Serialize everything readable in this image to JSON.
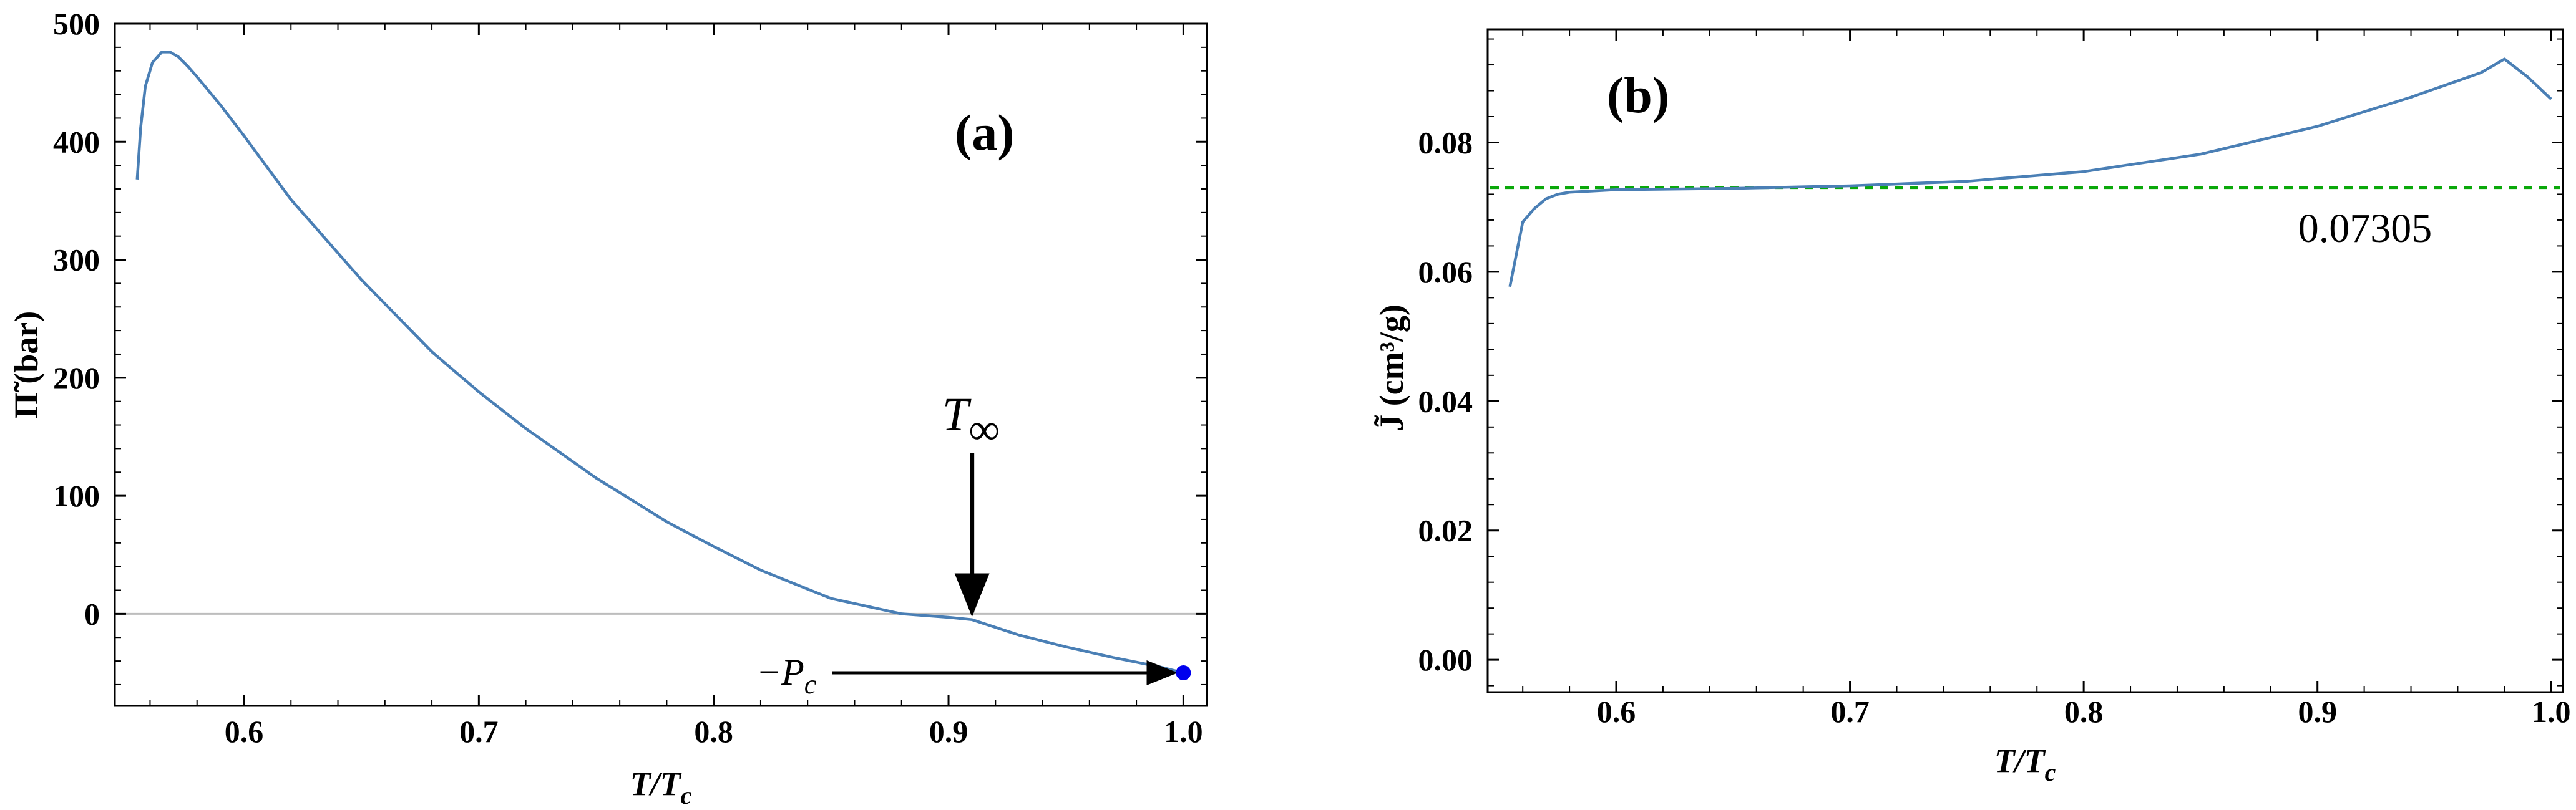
{
  "chart_data": [
    {
      "type": "line",
      "panel_label": "(a)",
      "xlabel": "T/Tc",
      "ylabel": "Π̃ (bar)",
      "xlim": [
        0.545,
        1.01
      ],
      "ylim": [
        -78,
        500
      ],
      "xticks": [
        0.6,
        0.7,
        0.8,
        0.9,
        1.0
      ],
      "xtick_labels": [
        "0.6",
        "0.7",
        "0.8",
        "0.9",
        "1.0"
      ],
      "yticks": [
        0,
        100,
        200,
        300,
        400,
        500
      ],
      "ytick_labels": [
        "0",
        "100",
        "200",
        "300",
        "400",
        "500"
      ],
      "zero_line": true,
      "series": [
        {
          "name": "Pi_tilde",
          "color": "#4a7fb5",
          "x": [
            0.5545,
            0.556,
            0.558,
            0.561,
            0.565,
            0.5685,
            0.572,
            0.576,
            0.58,
            0.59,
            0.6,
            0.62,
            0.65,
            0.68,
            0.7,
            0.72,
            0.75,
            0.78,
            0.8,
            0.82,
            0.85,
            0.88,
            0.9,
            0.91,
            0.93,
            0.95,
            0.97,
            0.99,
            1.0
          ],
          "y": [
            368,
            412,
            447,
            467,
            476,
            476,
            472,
            464,
            455,
            431,
            405,
            351,
            283,
            222,
            188,
            157,
            115,
            78,
            57,
            37,
            13,
            0,
            -3,
            -5,
            -18,
            -28,
            -37,
            -45,
            -50
          ]
        }
      ],
      "annotations": [
        {
          "text": "T∞",
          "x": 0.91,
          "y": 0,
          "type": "down-arrow"
        },
        {
          "text": "−Pc",
          "x": 1.0,
          "y": -50,
          "type": "right-arrow"
        }
      ],
      "marker": {
        "x": 1.0,
        "y": -50,
        "color": "#0000ee"
      }
    },
    {
      "type": "line",
      "panel_label": "(b)",
      "xlabel": "T/Tc",
      "ylabel": "J̃ (cm³/g)",
      "xlim": [
        0.545,
        1.005
      ],
      "ylim": [
        -0.005,
        0.0975
      ],
      "xticks": [
        0.6,
        0.7,
        0.8,
        0.9,
        1.0
      ],
      "xtick_labels": [
        "0.6",
        "0.7",
        "0.8",
        "0.9",
        "1.0"
      ],
      "yticks": [
        0.0,
        0.02,
        0.04,
        0.06,
        0.08
      ],
      "ytick_labels": [
        "0.00",
        "0.02",
        "0.04",
        "0.06",
        "0.08"
      ],
      "series": [
        {
          "name": "J_tilde",
          "color": "#4a7fb5",
          "x": [
            0.5545,
            0.56,
            0.565,
            0.57,
            0.575,
            0.58,
            0.6,
            0.65,
            0.7,
            0.75,
            0.8,
            0.85,
            0.9,
            0.94,
            0.97,
            0.98,
            0.99,
            1.0
          ],
          "y": [
            0.0577,
            0.0677,
            0.0698,
            0.0713,
            0.072,
            0.0723,
            0.0727,
            0.0729,
            0.0733,
            0.074,
            0.0755,
            0.0782,
            0.0825,
            0.087,
            0.0908,
            0.0929,
            0.0901,
            0.0867
          ]
        }
      ],
      "reference_line": {
        "y": 0.07305,
        "label": "0.07305",
        "color": "#0aa80a"
      }
    }
  ]
}
